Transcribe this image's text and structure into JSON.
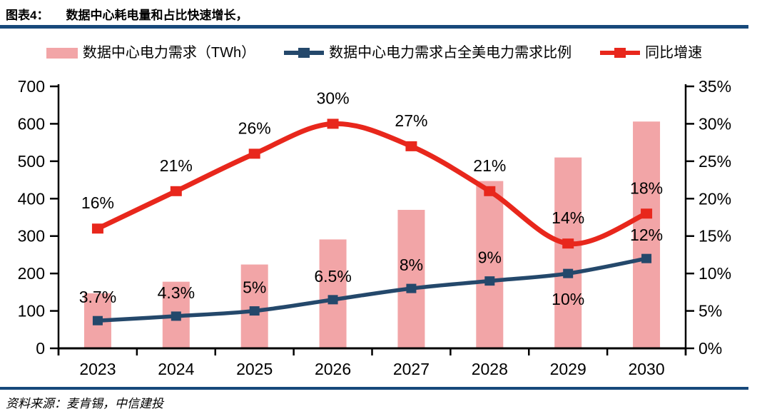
{
  "header": {
    "figure_label": "图表4：",
    "title": "数据中心耗电量和占比快速增长，"
  },
  "legend": [
    {
      "label": "数据中心电力需求（TWh）",
      "swatch": "bar",
      "color": "#F2A5A7"
    },
    {
      "label": "数据中心电力需求占全美电力需求比例",
      "swatch": "line-square",
      "color": "#24486B"
    },
    {
      "label": "同比增速",
      "swatch": "line-square",
      "color": "#E8271C"
    }
  ],
  "footer": {
    "source": "资料来源：麦肯锡，中信建投"
  },
  "colors": {
    "bar_pink": "#F2A5A7",
    "line_navy": "#24486B",
    "line_red": "#E8271C",
    "rule_navy": "#17497B",
    "axis_black": "#000000"
  },
  "chart_data": {
    "type": "bar",
    "subtype": "combo-bar-line",
    "categories": [
      "2023",
      "2024",
      "2025",
      "2026",
      "2027",
      "2028",
      "2029",
      "2030"
    ],
    "series": [
      {
        "name": "数据中心电力需求（TWh）",
        "type": "bar",
        "axis": "left",
        "color": "#F2A5A7",
        "values": [
          147,
          178,
          224,
          291,
          370,
          447,
          510,
          606
        ]
      },
      {
        "name": "数据中心电力需求占全美电力需求比例",
        "type": "line",
        "axis": "right",
        "color": "#24486B",
        "values": [
          3.7,
          4.3,
          5,
          6.5,
          8,
          9,
          10,
          12
        ],
        "labels": [
          "3.7%",
          "4.3%",
          "5%",
          "6.5%",
          "8%",
          "9%",
          "10%",
          "12%"
        ],
        "label_positions": [
          "above",
          "above",
          "above",
          "above",
          "above",
          "above",
          "below",
          "above"
        ]
      },
      {
        "name": "同比增速",
        "type": "line",
        "axis": "right",
        "color": "#E8271C",
        "values": [
          16,
          21,
          26,
          30,
          27,
          21,
          14,
          18
        ],
        "labels": [
          "16%",
          "21%",
          "26%",
          "30%",
          "27%",
          "21%",
          "14%",
          "18%"
        ],
        "label_positions": [
          "above",
          "above",
          "above",
          "above",
          "above",
          "above",
          "above",
          "above"
        ]
      }
    ],
    "left_axis": {
      "min": 0,
      "max": 700,
      "step": 100,
      "ticks": [
        "0",
        "100",
        "200",
        "300",
        "400",
        "500",
        "600",
        "700"
      ]
    },
    "right_axis": {
      "min": 0,
      "max": 35,
      "step": 5,
      "ticks": [
        "0%",
        "5%",
        "10%",
        "15%",
        "20%",
        "25%",
        "30%",
        "35%"
      ]
    },
    "grid": false,
    "legend_position": "top",
    "title": "数据中心耗电量和占比快速增长"
  }
}
